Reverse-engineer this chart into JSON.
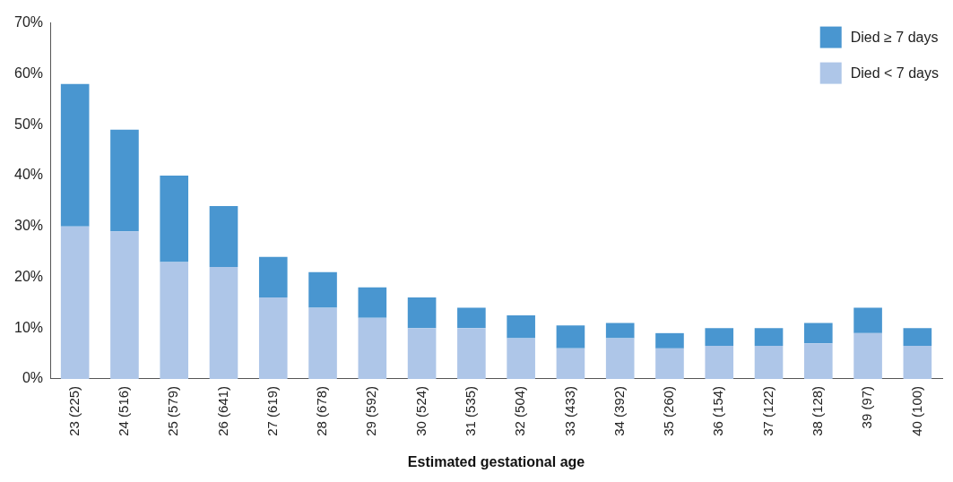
{
  "chart_data": {
    "type": "bar",
    "stacked": true,
    "xlabel": "Estimated gestational age",
    "categories": [
      "23 (225)",
      "24 (516)",
      "25 (579)",
      "26 (641)",
      "27 (619)",
      "28 (678)",
      "29 (592)",
      "30 (524)",
      "31 (535)",
      "32 (504)",
      "33 (433)",
      "34 (392)",
      "35 (260)",
      "36 (154)",
      "37 (122)",
      "38 (128)",
      "39 (97)",
      "40 (100)"
    ],
    "series": [
      {
        "name": "Died < 7 days",
        "color": "#aec6e8",
        "values": [
          30,
          29,
          23,
          22,
          16,
          14,
          12,
          10,
          10,
          8,
          6,
          8,
          6,
          6.5,
          6.5,
          7,
          9,
          6.5
        ]
      },
      {
        "name": "Died ≥ 7 days",
        "color": "#4996d0",
        "values": [
          28,
          20,
          17,
          12,
          8,
          7,
          6,
          6,
          4,
          4.5,
          4.5,
          3,
          3,
          3.5,
          3.5,
          4,
          5,
          3.5
        ]
      }
    ],
    "ylim": [
      0,
      70
    ],
    "yticks": [
      {
        "value": 0,
        "label": "0%"
      },
      {
        "value": 10,
        "label": "10%"
      },
      {
        "value": 20,
        "label": "20%"
      },
      {
        "value": 30,
        "label": "30%"
      },
      {
        "value": 40,
        "label": "40%"
      },
      {
        "value": 50,
        "label": "50%"
      },
      {
        "value": 60,
        "label": "60%"
      },
      {
        "value": 70,
        "label": "70%"
      }
    ],
    "grid": false,
    "legend": "top right"
  }
}
